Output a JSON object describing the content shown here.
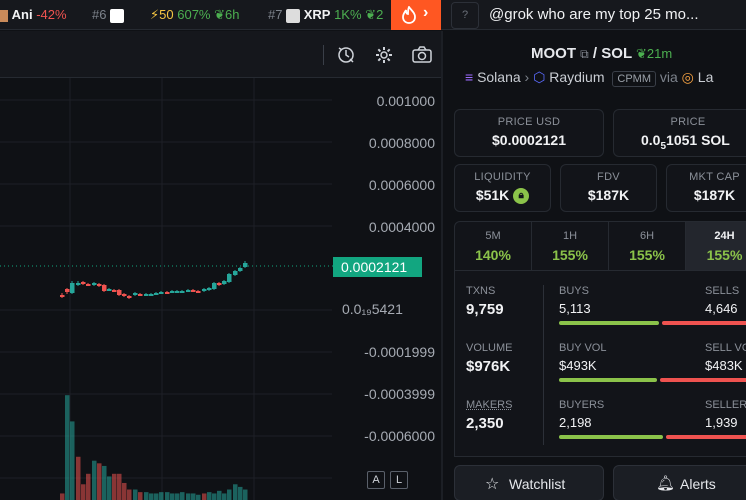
{
  "ticker": [
    {
      "sym": "Ani",
      "chg": "-42%"
    },
    {
      "rank": "#6"
    },
    {
      "trend": "50",
      "chg": "607%",
      "age": "6h"
    },
    {
      "rank": "#7",
      "sym": "XRP",
      "chg": "1K%",
      "age": "2"
    }
  ],
  "search": {
    "help": "?",
    "text": "@grok who are my top 25 mo..."
  },
  "pair": {
    "base": "MOOT",
    "sep": "/",
    "quote": "SOL",
    "age": "21m"
  },
  "chain": {
    "network": "Solana",
    "dex": "Raydium",
    "type": "CPMM",
    "via": "via",
    "launchpad": "La"
  },
  "price_usd": {
    "label": "PRICE USD",
    "value": "$0.0002121"
  },
  "price_native": {
    "label": "PRICE",
    "prefix": "0.0",
    "zeros": "5",
    "rest": "1051 SOL"
  },
  "liquidity": {
    "label": "LIQUIDITY",
    "value": "$51K"
  },
  "fdv": {
    "label": "FDV",
    "value": "$187K"
  },
  "mktcap": {
    "label": "MKT CAP",
    "value": "$187K"
  },
  "tabs": [
    {
      "label": "5M",
      "value": "140%"
    },
    {
      "label": "1H",
      "value": "155%"
    },
    {
      "label": "6H",
      "value": "155%"
    },
    {
      "label": "24H",
      "value": "155%",
      "active": true
    }
  ],
  "stats": {
    "txns": {
      "label": "TXNS",
      "value": "9,759"
    },
    "volume": {
      "label": "VOLUME",
      "value": "$976K"
    },
    "makers": {
      "label": "MAKERS",
      "value": "2,350"
    },
    "buys": {
      "label": "BUYS",
      "value": "5,113",
      "other_label": "SELLS",
      "other_value": "4,646"
    },
    "buyvol": {
      "label": "BUY VOL",
      "value": "$493K",
      "other_label": "SELL VO",
      "other_value": "$483K"
    },
    "buyers": {
      "label": "BUYERS",
      "value": "2,198",
      "other_label": "SELLERS",
      "other_value": "1,939"
    }
  },
  "buttons": {
    "watchlist": "Watchlist",
    "alerts": "Alerts"
  },
  "chart": {
    "axis_labels": [
      "0.001000",
      "0.0008000",
      "0.0006000",
      "0.0004000",
      "0.0₁₉5421",
      "-0.0001999",
      "-0.0003999",
      "-0.0006000"
    ],
    "current_price": "0.0002121",
    "auto_btn": "A",
    "log_btn": "L"
  },
  "colors": {
    "up": "#26a69a",
    "down": "#ef5350",
    "accent": "#12a680",
    "fire": "#ff5722"
  }
}
